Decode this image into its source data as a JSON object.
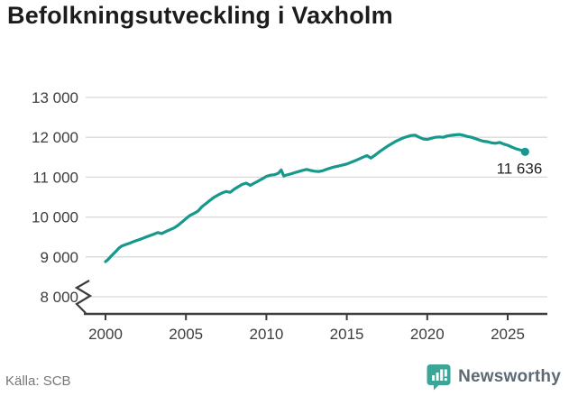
{
  "header": {
    "title": "Befolkningsutveckling i Vaxholm"
  },
  "footer": {
    "source": "Källa: SCB",
    "brand": "Newsworthy"
  },
  "colors": {
    "line": "#16998c",
    "marker": "#16998c",
    "grid": "#d9d9d9",
    "axis": "#3c3c3c",
    "tick_label": "#3d3d3d",
    "title": "#1c1c1c",
    "source": "#767676",
    "brand_text": "#5d6a74",
    "brand_icon": "#3ba597",
    "end_label": "#1f1f1f"
  },
  "chart_data": {
    "type": "line",
    "title": "Befolkningsutveckling i Vaxholm",
    "xlabel": "",
    "ylabel": "",
    "source": "Källa: SCB",
    "ylim": [
      8000,
      13000
    ],
    "xlim": [
      2000,
      2026.5
    ],
    "axis_break": true,
    "grid": "horizontal",
    "xticks": [
      2000,
      2005,
      2010,
      2015,
      2020,
      2025
    ],
    "ytick_values": [
      8000,
      9000,
      10000,
      11000,
      12000,
      13000
    ],
    "ytick_labels": [
      "8 000",
      "9 000",
      "10 000",
      "11 000",
      "12 000",
      "13 000"
    ],
    "last_point_label": "11 636",
    "last_value": 11636,
    "series": [
      {
        "points": [
          [
            2000.0,
            8880
          ],
          [
            2000.17,
            8940
          ],
          [
            2000.33,
            9010
          ],
          [
            2000.5,
            9080
          ],
          [
            2000.67,
            9150
          ],
          [
            2000.83,
            9220
          ],
          [
            2001.0,
            9270
          ],
          [
            2001.25,
            9310
          ],
          [
            2001.5,
            9345
          ],
          [
            2001.75,
            9385
          ],
          [
            2002.0,
            9420
          ],
          [
            2002.25,
            9455
          ],
          [
            2002.5,
            9495
          ],
          [
            2002.75,
            9535
          ],
          [
            2003.0,
            9570
          ],
          [
            2003.25,
            9610
          ],
          [
            2003.5,
            9585
          ],
          [
            2003.75,
            9635
          ],
          [
            2004.0,
            9680
          ],
          [
            2004.25,
            9725
          ],
          [
            2004.5,
            9790
          ],
          [
            2004.75,
            9870
          ],
          [
            2005.0,
            9960
          ],
          [
            2005.25,
            10040
          ],
          [
            2005.5,
            10090
          ],
          [
            2005.75,
            10150
          ],
          [
            2006.0,
            10260
          ],
          [
            2006.25,
            10340
          ],
          [
            2006.5,
            10420
          ],
          [
            2006.75,
            10495
          ],
          [
            2007.0,
            10555
          ],
          [
            2007.25,
            10605
          ],
          [
            2007.5,
            10640
          ],
          [
            2007.75,
            10620
          ],
          [
            2008.0,
            10700
          ],
          [
            2008.25,
            10760
          ],
          [
            2008.5,
            10820
          ],
          [
            2008.75,
            10850
          ],
          [
            2009.0,
            10795
          ],
          [
            2009.25,
            10850
          ],
          [
            2009.5,
            10905
          ],
          [
            2009.75,
            10960
          ],
          [
            2010.0,
            11020
          ],
          [
            2010.25,
            11050
          ],
          [
            2010.5,
            11060
          ],
          [
            2010.75,
            11100
          ],
          [
            2010.92,
            11180
          ],
          [
            2011.08,
            11030
          ],
          [
            2011.25,
            11055
          ],
          [
            2011.5,
            11080
          ],
          [
            2011.75,
            11110
          ],
          [
            2012.0,
            11140
          ],
          [
            2012.25,
            11170
          ],
          [
            2012.5,
            11195
          ],
          [
            2012.75,
            11170
          ],
          [
            2013.0,
            11150
          ],
          [
            2013.25,
            11140
          ],
          [
            2013.5,
            11160
          ],
          [
            2013.75,
            11200
          ],
          [
            2014.0,
            11230
          ],
          [
            2014.25,
            11260
          ],
          [
            2014.5,
            11280
          ],
          [
            2014.75,
            11305
          ],
          [
            2015.0,
            11330
          ],
          [
            2015.25,
            11370
          ],
          [
            2015.5,
            11410
          ],
          [
            2015.75,
            11455
          ],
          [
            2016.0,
            11500
          ],
          [
            2016.25,
            11540
          ],
          [
            2016.5,
            11480
          ],
          [
            2016.75,
            11550
          ],
          [
            2017.0,
            11630
          ],
          [
            2017.25,
            11700
          ],
          [
            2017.5,
            11770
          ],
          [
            2017.75,
            11830
          ],
          [
            2018.0,
            11890
          ],
          [
            2018.25,
            11940
          ],
          [
            2018.5,
            11985
          ],
          [
            2018.75,
            12015
          ],
          [
            2019.0,
            12045
          ],
          [
            2019.25,
            12055
          ],
          [
            2019.5,
            12000
          ],
          [
            2019.75,
            11960
          ],
          [
            2020.0,
            11945
          ],
          [
            2020.25,
            11975
          ],
          [
            2020.5,
            12000
          ],
          [
            2020.75,
            12010
          ],
          [
            2021.0,
            12000
          ],
          [
            2021.25,
            12035
          ],
          [
            2021.5,
            12050
          ],
          [
            2021.75,
            12060
          ],
          [
            2022.0,
            12070
          ],
          [
            2022.25,
            12050
          ],
          [
            2022.5,
            12020
          ],
          [
            2022.75,
            12000
          ],
          [
            2023.0,
            11965
          ],
          [
            2023.25,
            11930
          ],
          [
            2023.5,
            11900
          ],
          [
            2023.75,
            11890
          ],
          [
            2024.0,
            11860
          ],
          [
            2024.25,
            11850
          ],
          [
            2024.5,
            11870
          ],
          [
            2024.75,
            11830
          ],
          [
            2025.0,
            11800
          ],
          [
            2025.25,
            11755
          ],
          [
            2025.5,
            11715
          ],
          [
            2025.75,
            11685
          ],
          [
            2026.0,
            11655
          ],
          [
            2026.08,
            11636
          ]
        ]
      }
    ]
  }
}
